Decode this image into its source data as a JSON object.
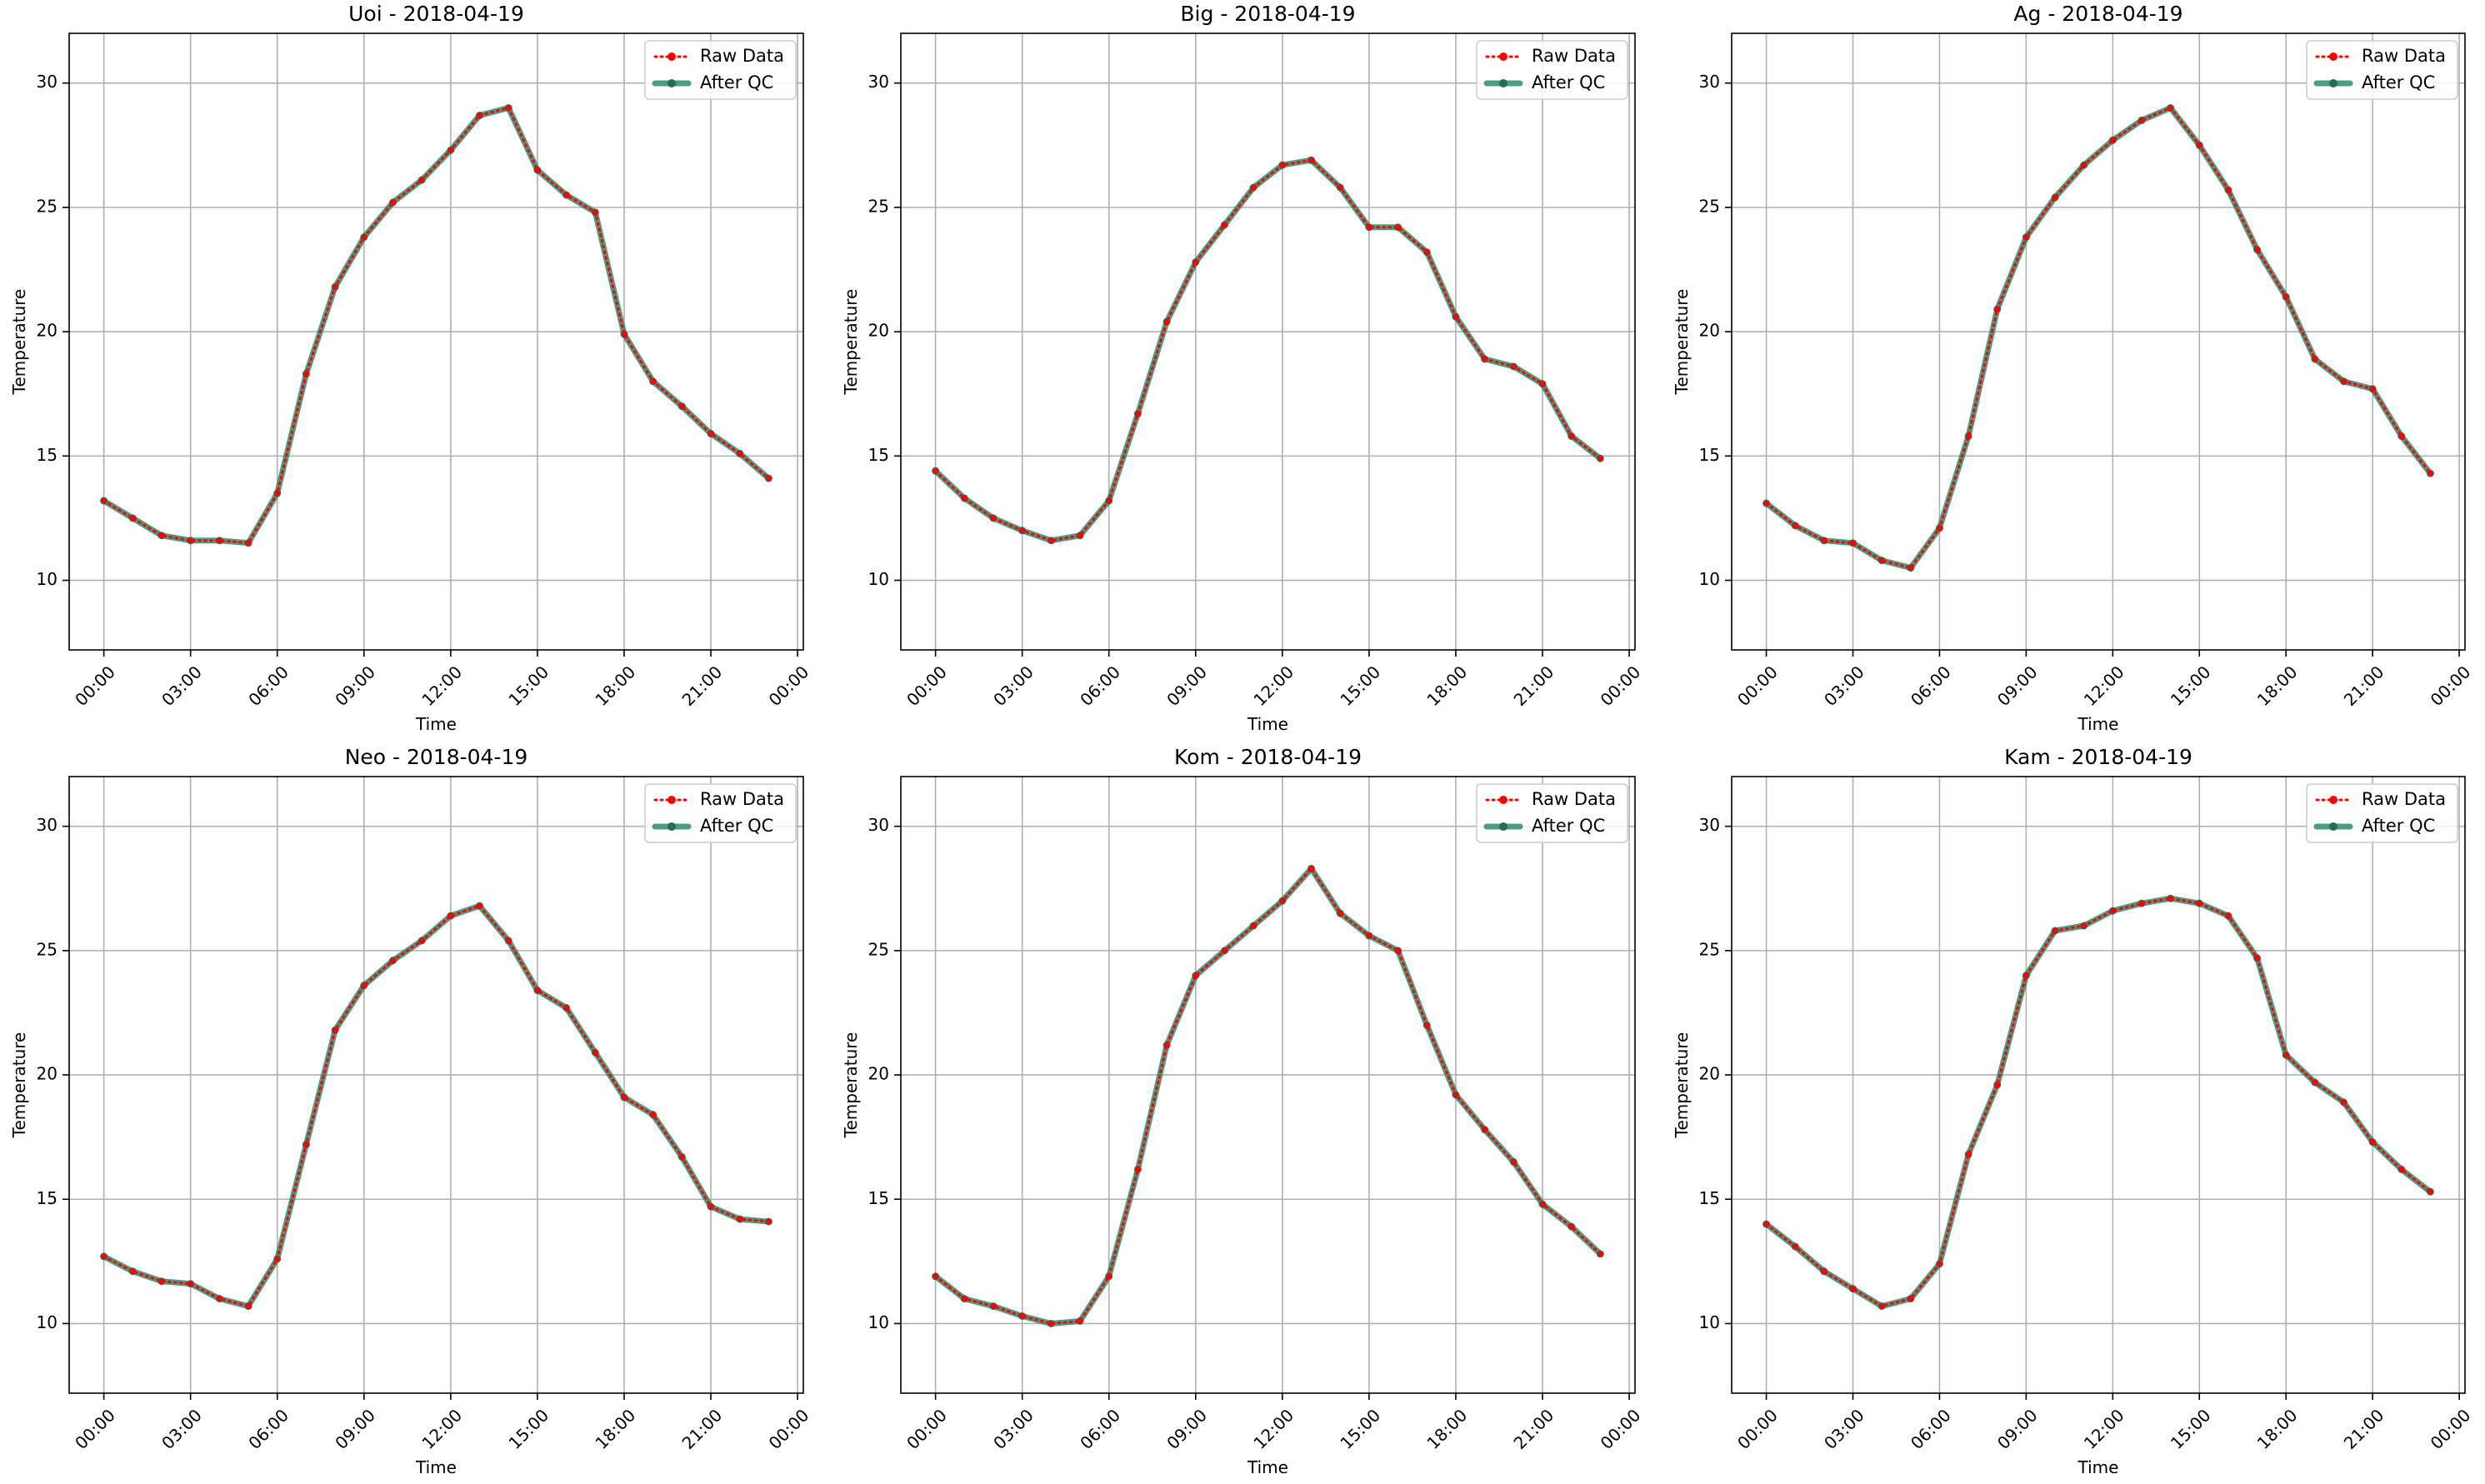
{
  "chart_data": [
    {
      "type": "line",
      "title": "Uoi - 2018-04-19",
      "xlabel": "Time",
      "ylabel": "Temperature",
      "ylim": [
        7.2,
        32.0
      ],
      "yticks": [
        10,
        15,
        20,
        25,
        30
      ],
      "xticks": [
        "00:00",
        "03:00",
        "06:00",
        "09:00",
        "12:00",
        "15:00",
        "18:00",
        "21:00",
        "00:00"
      ],
      "xlim_hours": [
        -1.2,
        24.2
      ],
      "x_hours": [
        0,
        1,
        2,
        3,
        4,
        5,
        6,
        7,
        8,
        9,
        10,
        11,
        12,
        13,
        14,
        15,
        16,
        17,
        18,
        19,
        20,
        21,
        22,
        23
      ],
      "grid": true,
      "legend_position": "top-right",
      "series": [
        {
          "name": "Raw Data",
          "color": "#ff0000",
          "style": "dotted",
          "values": [
            13.2,
            12.5,
            11.8,
            11.6,
            11.6,
            11.5,
            13.5,
            18.3,
            21.8,
            23.8,
            25.2,
            26.1,
            27.3,
            28.7,
            29.0,
            26.5,
            25.5,
            24.8,
            19.9,
            18.0,
            17.0,
            15.9,
            15.1,
            14.1
          ]
        },
        {
          "name": "After QC",
          "color": "#2e8b6f",
          "style": "solid",
          "values": [
            13.2,
            12.5,
            11.8,
            11.6,
            11.6,
            11.5,
            13.5,
            18.3,
            21.8,
            23.8,
            25.2,
            26.1,
            27.3,
            28.7,
            29.0,
            26.5,
            25.5,
            24.8,
            19.9,
            18.0,
            17.0,
            15.9,
            15.1,
            14.1
          ]
        }
      ]
    },
    {
      "type": "line",
      "title": "Big - 2018-04-19",
      "xlabel": "Time",
      "ylabel": "Temperature",
      "ylim": [
        7.2,
        32.0
      ],
      "yticks": [
        10,
        15,
        20,
        25,
        30
      ],
      "xticks": [
        "00:00",
        "03:00",
        "06:00",
        "09:00",
        "12:00",
        "15:00",
        "18:00",
        "21:00",
        "00:00"
      ],
      "xlim_hours": [
        -1.2,
        24.2
      ],
      "x_hours": [
        0,
        1,
        2,
        3,
        4,
        5,
        6,
        7,
        8,
        9,
        10,
        11,
        12,
        13,
        14,
        15,
        16,
        17,
        18,
        19,
        20,
        21,
        22,
        23
      ],
      "grid": true,
      "legend_position": "top-right",
      "series": [
        {
          "name": "Raw Data",
          "color": "#ff0000",
          "style": "dotted",
          "values": [
            14.4,
            13.3,
            12.5,
            12.0,
            11.6,
            11.8,
            13.2,
            16.7,
            20.4,
            22.8,
            24.3,
            25.8,
            26.7,
            26.9,
            25.8,
            24.2,
            24.2,
            23.2,
            20.6,
            18.9,
            18.6,
            17.9,
            15.8,
            14.9
          ]
        },
        {
          "name": "After QC",
          "color": "#2e8b6f",
          "style": "solid",
          "values": [
            14.4,
            13.3,
            12.5,
            12.0,
            11.6,
            11.8,
            13.2,
            16.7,
            20.4,
            22.8,
            24.3,
            25.8,
            26.7,
            26.9,
            25.8,
            24.2,
            24.2,
            23.2,
            20.6,
            18.9,
            18.6,
            17.9,
            15.8,
            14.9
          ]
        }
      ]
    },
    {
      "type": "line",
      "title": "Ag - 2018-04-19",
      "xlabel": "Time",
      "ylabel": "Temperature",
      "ylim": [
        7.2,
        32.0
      ],
      "yticks": [
        10,
        15,
        20,
        25,
        30
      ],
      "xticks": [
        "00:00",
        "03:00",
        "06:00",
        "09:00",
        "12:00",
        "15:00",
        "18:00",
        "21:00",
        "00:00"
      ],
      "xlim_hours": [
        -1.2,
        24.2
      ],
      "x_hours": [
        0,
        1,
        2,
        3,
        4,
        5,
        6,
        7,
        8,
        9,
        10,
        11,
        12,
        13,
        14,
        15,
        16,
        17,
        18,
        19,
        20,
        21,
        22,
        23
      ],
      "grid": true,
      "legend_position": "top-right",
      "series": [
        {
          "name": "Raw Data",
          "color": "#ff0000",
          "style": "dotted",
          "values": [
            13.1,
            12.2,
            11.6,
            11.5,
            10.8,
            10.5,
            12.1,
            15.8,
            20.9,
            23.8,
            25.4,
            26.7,
            27.7,
            28.5,
            29.0,
            27.5,
            25.7,
            23.3,
            21.4,
            18.9,
            18.0,
            17.7,
            15.8,
            14.3
          ]
        },
        {
          "name": "After QC",
          "color": "#2e8b6f",
          "style": "solid",
          "values": [
            13.1,
            12.2,
            11.6,
            11.5,
            10.8,
            10.5,
            12.1,
            15.8,
            20.9,
            23.8,
            25.4,
            26.7,
            27.7,
            28.5,
            29.0,
            27.5,
            25.7,
            23.3,
            21.4,
            18.9,
            18.0,
            17.7,
            15.8,
            14.3
          ]
        }
      ]
    },
    {
      "type": "line",
      "title": "Neo - 2018-04-19",
      "xlabel": "Time",
      "ylabel": "Temperature",
      "ylim": [
        7.2,
        32.0
      ],
      "yticks": [
        10,
        15,
        20,
        25,
        30
      ],
      "xticks": [
        "00:00",
        "03:00",
        "06:00",
        "09:00",
        "12:00",
        "15:00",
        "18:00",
        "21:00",
        "00:00"
      ],
      "xlim_hours": [
        -1.2,
        24.2
      ],
      "x_hours": [
        0,
        1,
        2,
        3,
        4,
        5,
        6,
        7,
        8,
        9,
        10,
        11,
        12,
        13,
        14,
        15,
        16,
        17,
        18,
        19,
        20,
        21,
        22,
        23
      ],
      "grid": true,
      "legend_position": "top-right",
      "series": [
        {
          "name": "Raw Data",
          "color": "#ff0000",
          "style": "dotted",
          "values": [
            12.7,
            12.1,
            11.7,
            11.6,
            11.0,
            10.7,
            12.6,
            17.2,
            21.8,
            23.6,
            24.6,
            25.4,
            26.4,
            26.8,
            25.4,
            23.4,
            22.7,
            20.9,
            19.1,
            18.4,
            16.7,
            14.7,
            14.2,
            14.1
          ]
        },
        {
          "name": "After QC",
          "color": "#2e8b6f",
          "style": "solid",
          "values": [
            12.7,
            12.1,
            11.7,
            11.6,
            11.0,
            10.7,
            12.6,
            17.2,
            21.8,
            23.6,
            24.6,
            25.4,
            26.4,
            26.8,
            25.4,
            23.4,
            22.7,
            20.9,
            19.1,
            18.4,
            16.7,
            14.7,
            14.2,
            14.1
          ]
        }
      ]
    },
    {
      "type": "line",
      "title": "Kom - 2018-04-19",
      "xlabel": "Time",
      "ylabel": "Temperature",
      "ylim": [
        7.2,
        32.0
      ],
      "yticks": [
        10,
        15,
        20,
        25,
        30
      ],
      "xticks": [
        "00:00",
        "03:00",
        "06:00",
        "09:00",
        "12:00",
        "15:00",
        "18:00",
        "21:00",
        "00:00"
      ],
      "xlim_hours": [
        -1.2,
        24.2
      ],
      "x_hours": [
        0,
        1,
        2,
        3,
        4,
        5,
        6,
        7,
        8,
        9,
        10,
        11,
        12,
        13,
        14,
        15,
        16,
        17,
        18,
        19,
        20,
        21,
        22,
        23
      ],
      "grid": true,
      "legend_position": "top-right",
      "series": [
        {
          "name": "Raw Data",
          "color": "#ff0000",
          "style": "dotted",
          "values": [
            11.9,
            11.0,
            10.7,
            10.3,
            10.0,
            10.1,
            11.9,
            16.2,
            21.2,
            24.0,
            25.0,
            26.0,
            27.0,
            28.3,
            26.5,
            25.6,
            25.0,
            22.0,
            19.2,
            17.8,
            16.5,
            14.8,
            13.9,
            12.8
          ]
        },
        {
          "name": "After QC",
          "color": "#2e8b6f",
          "style": "solid",
          "values": [
            11.9,
            11.0,
            10.7,
            10.3,
            10.0,
            10.1,
            11.9,
            16.2,
            21.2,
            24.0,
            25.0,
            26.0,
            27.0,
            28.3,
            26.5,
            25.6,
            25.0,
            22.0,
            19.2,
            17.8,
            16.5,
            14.8,
            13.9,
            12.8
          ]
        }
      ]
    },
    {
      "type": "line",
      "title": "Kam - 2018-04-19",
      "xlabel": "Time",
      "ylabel": "Temperature",
      "ylim": [
        7.2,
        32.0
      ],
      "yticks": [
        10,
        15,
        20,
        25,
        30
      ],
      "xticks": [
        "00:00",
        "03:00",
        "06:00",
        "09:00",
        "12:00",
        "15:00",
        "18:00",
        "21:00",
        "00:00"
      ],
      "xlim_hours": [
        -1.2,
        24.2
      ],
      "x_hours": [
        0,
        1,
        2,
        3,
        4,
        5,
        6,
        7,
        8,
        9,
        10,
        11,
        12,
        13,
        14,
        15,
        16,
        17,
        18,
        19,
        20,
        21,
        22,
        23
      ],
      "grid": true,
      "legend_position": "top-right",
      "series": [
        {
          "name": "Raw Data",
          "color": "#ff0000",
          "style": "dotted",
          "values": [
            14.0,
            13.1,
            12.1,
            11.4,
            10.7,
            11.0,
            12.4,
            16.8,
            19.6,
            24.0,
            25.8,
            26.0,
            26.6,
            26.9,
            27.1,
            26.9,
            26.4,
            24.7,
            20.8,
            19.7,
            18.9,
            17.3,
            16.2,
            15.3
          ]
        },
        {
          "name": "After QC",
          "color": "#2e8b6f",
          "style": "solid",
          "values": [
            14.0,
            13.1,
            12.1,
            11.4,
            10.7,
            11.0,
            12.4,
            16.8,
            19.6,
            24.0,
            25.8,
            26.0,
            26.6,
            26.9,
            27.1,
            26.9,
            26.4,
            24.7,
            20.8,
            19.7,
            18.9,
            17.3,
            16.2,
            15.3
          ]
        }
      ]
    }
  ]
}
